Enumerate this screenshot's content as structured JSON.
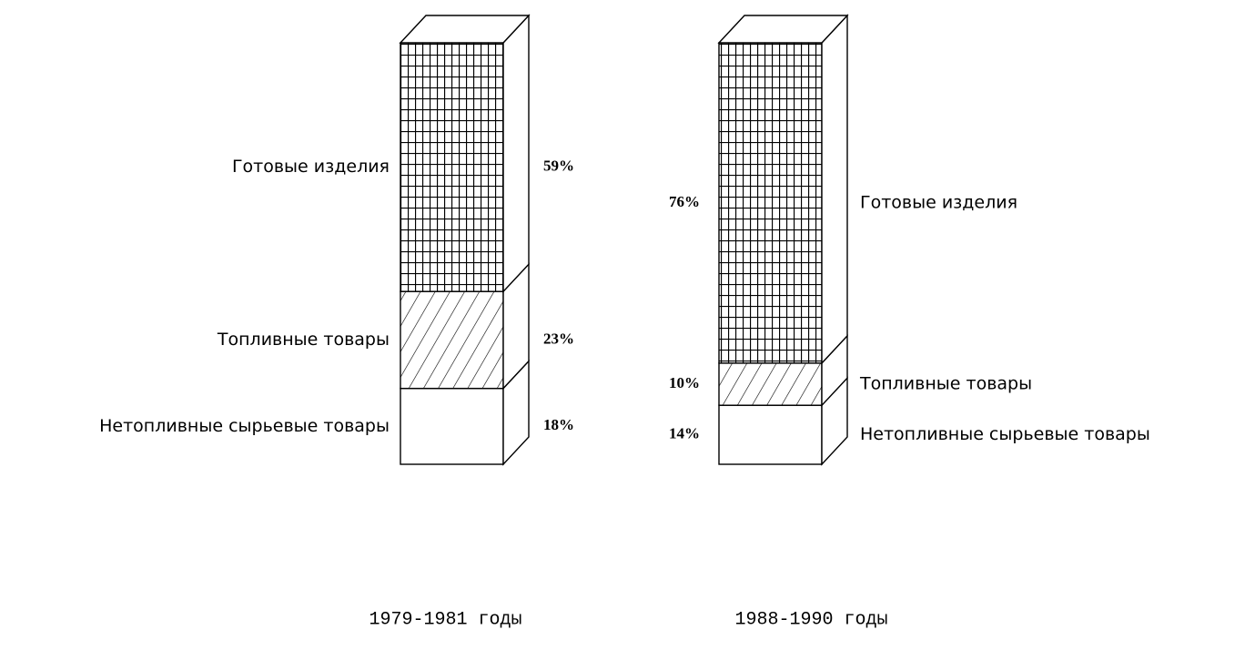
{
  "chart_data": {
    "type": "stacked-3d-column",
    "categories": [
      "1979-1981 годы",
      "1988-1990 годы"
    ],
    "series": [
      {
        "name": "Нетопливные сырьевые товары",
        "pattern": "none",
        "values": [
          18,
          14
        ],
        "value_labels": [
          "18%",
          "14%"
        ]
      },
      {
        "name": "Топливные товары",
        "pattern": "hatch",
        "values": [
          23,
          10
        ],
        "value_labels": [
          "23%",
          "10%"
        ]
      },
      {
        "name": "Готовые изделия",
        "pattern": "grid",
        "values": [
          59,
          76
        ],
        "value_labels": [
          "59%",
          "76%"
        ]
      }
    ]
  }
}
